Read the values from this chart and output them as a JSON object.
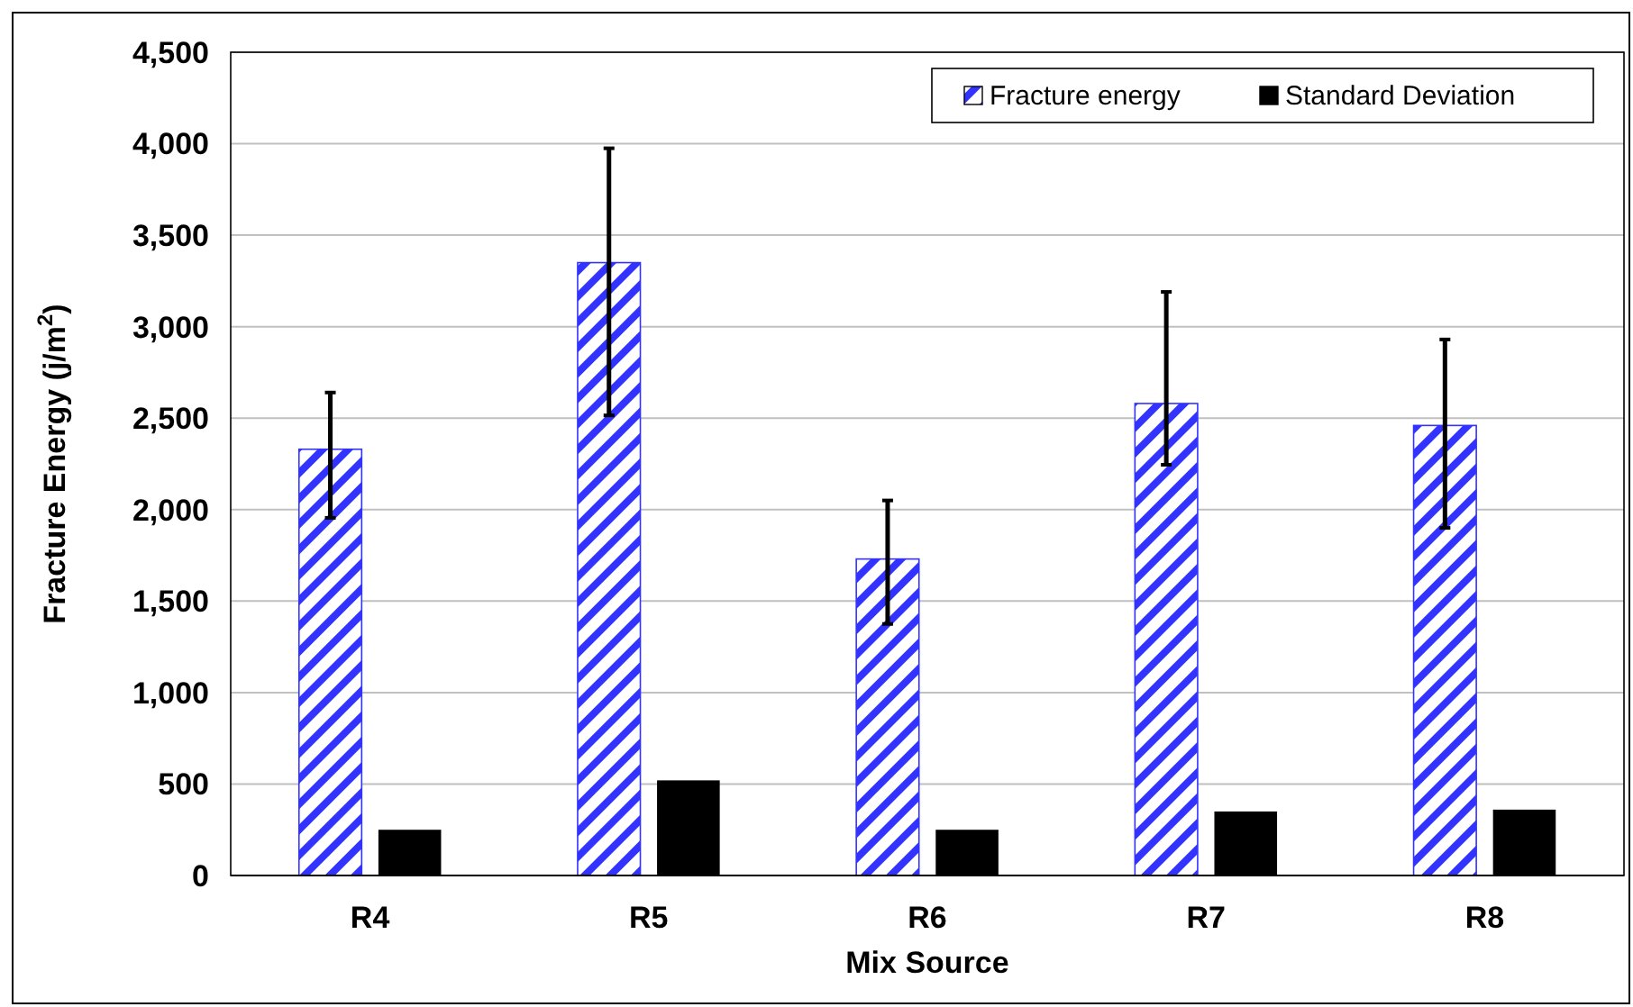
{
  "chart_data": {
    "type": "bar",
    "xlabel": "Mix Source",
    "ylabel": "Fracture Energy (j/m$^{2}$)",
    "categories": [
      "R4",
      "R5",
      "R6",
      "R7",
      "R8"
    ],
    "series": [
      {
        "name": "Fracture energy",
        "color": "#3333ff",
        "values": [
          2330,
          3350,
          1730,
          2580,
          2460
        ],
        "errors": [
          [
            1955,
            2640
          ],
          [
            2515,
            3975
          ],
          [
            1375,
            2050
          ],
          [
            2245,
            3190
          ],
          [
            1900,
            2930
          ]
        ]
      },
      {
        "name": "Standard Deviation",
        "color": "#000000",
        "values": [
          250,
          520,
          250,
          350,
          360
        ]
      }
    ],
    "ylim": [
      0,
      4500
    ],
    "yticks": [
      {
        "value": 0,
        "label": "0"
      },
      {
        "value": 500,
        "label": "500"
      },
      {
        "value": 1000,
        "label": "1,000"
      },
      {
        "value": 1500,
        "label": "1,500"
      },
      {
        "value": 2000,
        "label": "2,000"
      },
      {
        "value": 2500,
        "label": "2,500"
      },
      {
        "value": 3000,
        "label": "3,000"
      },
      {
        "value": 3500,
        "label": "3,500"
      },
      {
        "value": 4000,
        "label": "4,000"
      },
      {
        "value": 4500,
        "label": "4,500"
      }
    ],
    "grid": "y",
    "legend": "top right"
  }
}
